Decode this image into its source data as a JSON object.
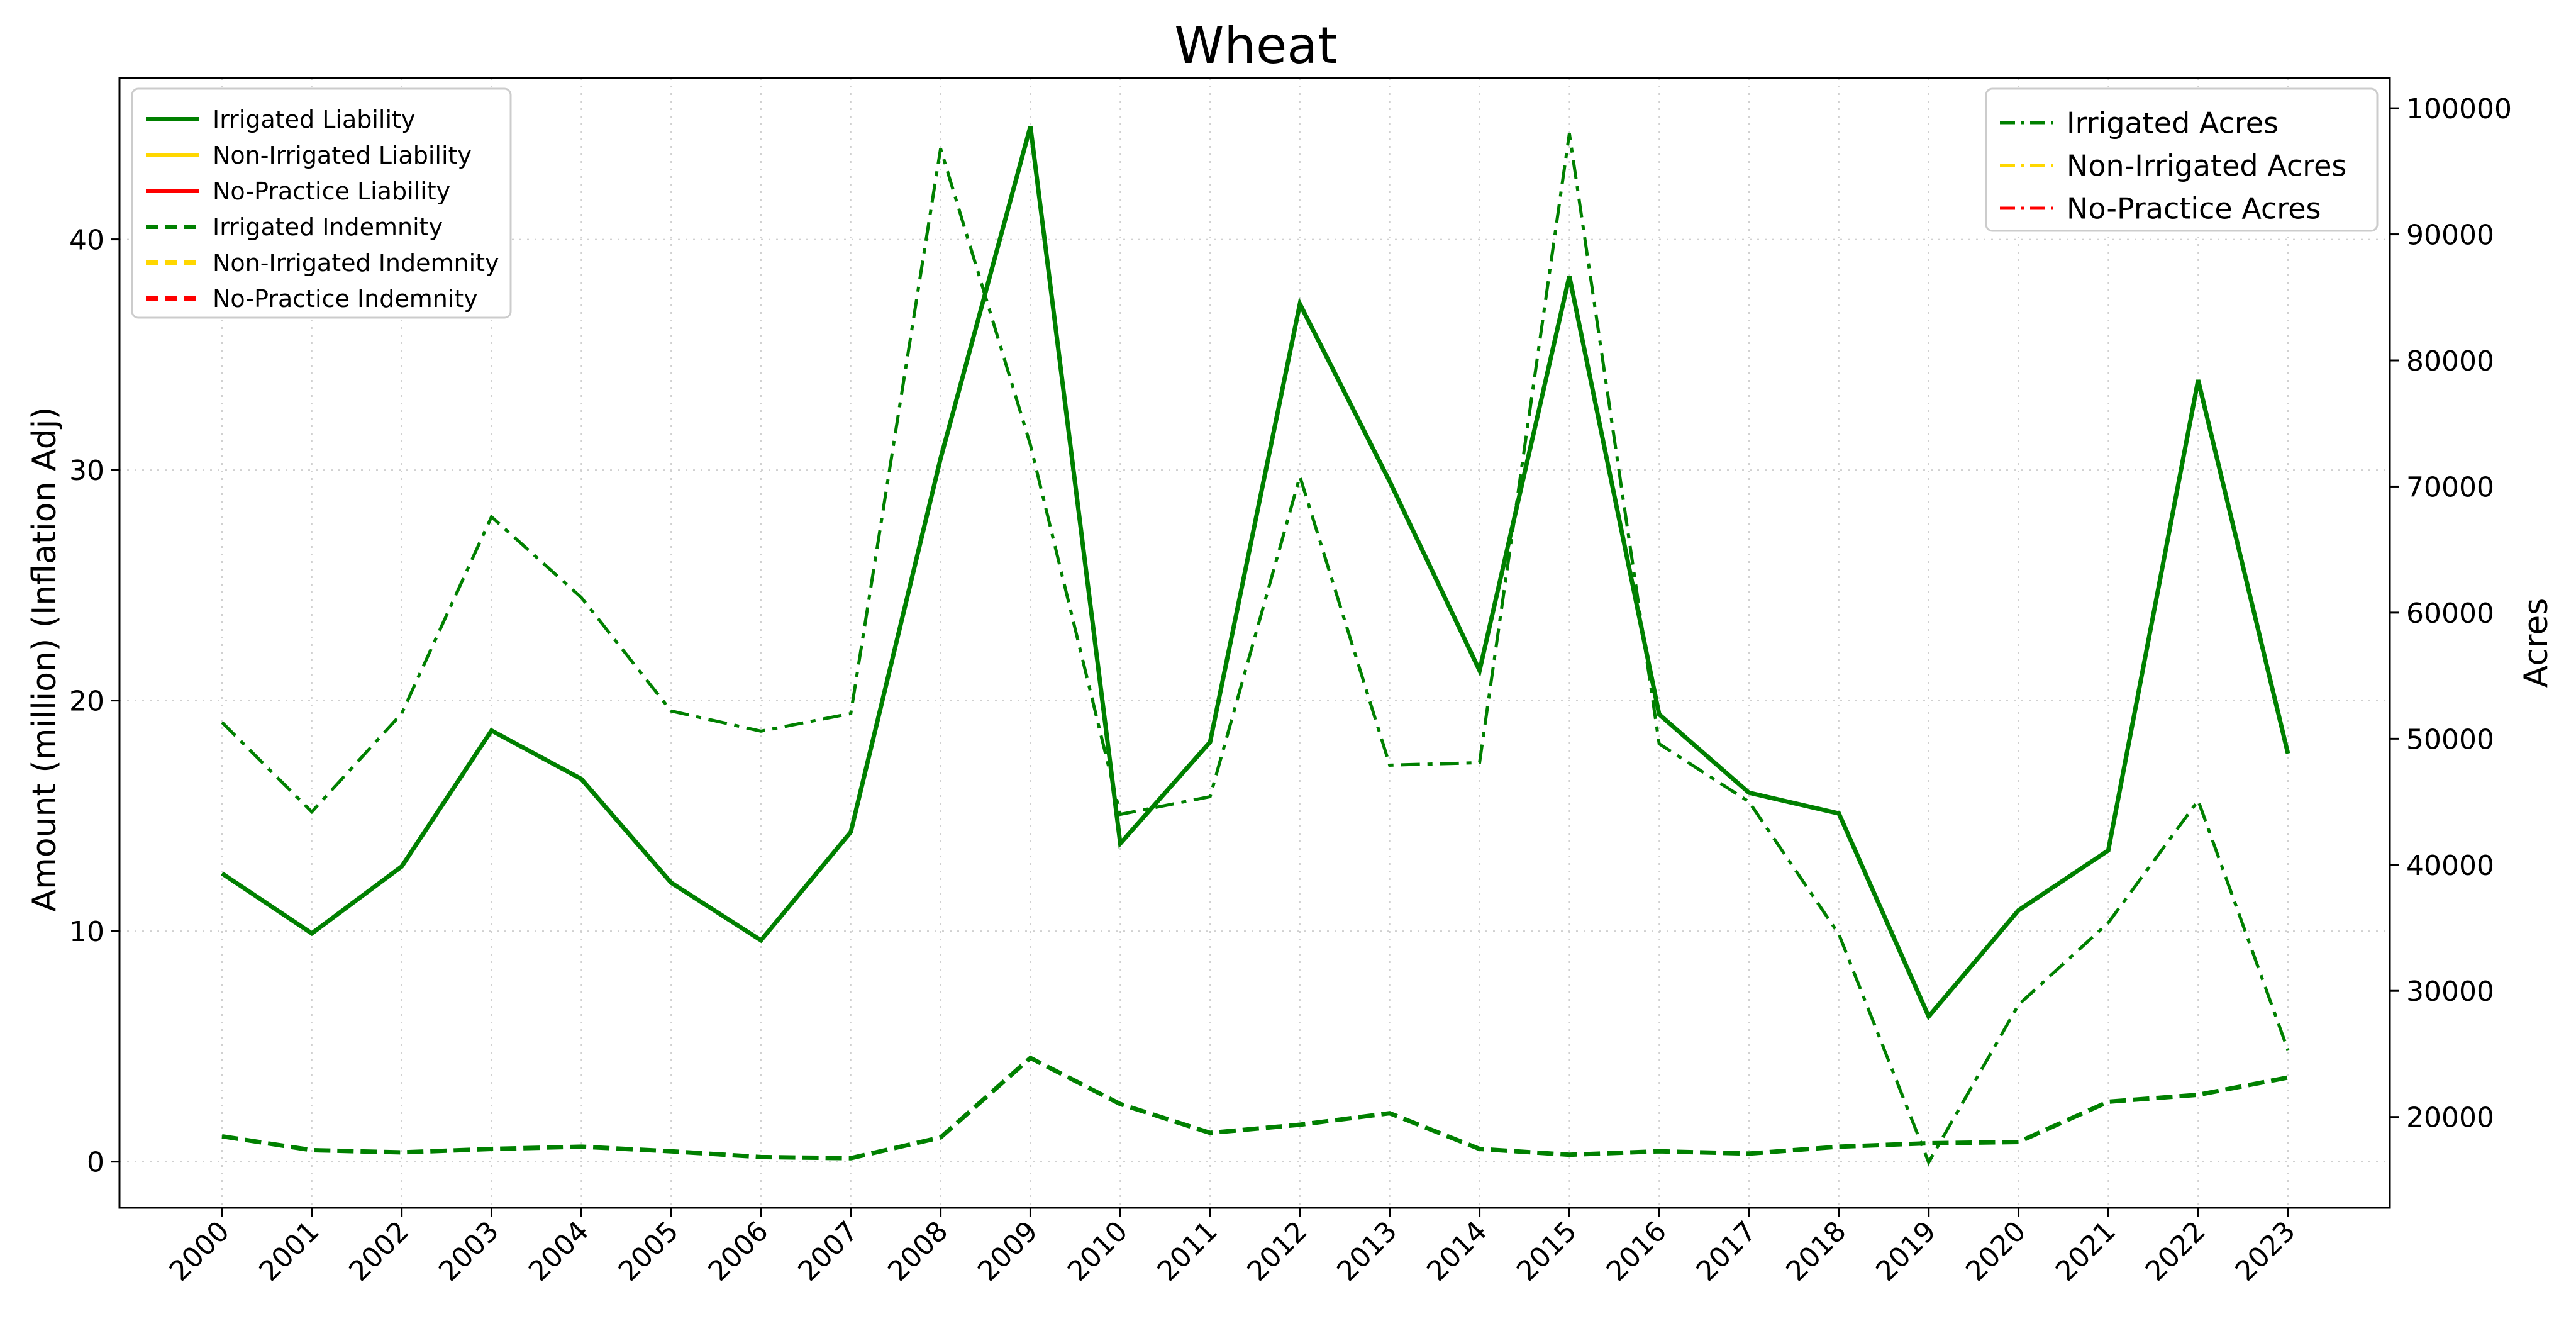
{
  "chart_data": {
    "type": "line",
    "title": "Wheat",
    "xlabel": "",
    "ylabel": "Amount (million) (Inflation Adj)",
    "ylabel_right": "Acres",
    "x": [
      "2000",
      "2001",
      "2002",
      "2003",
      "2004",
      "2005",
      "2006",
      "2007",
      "2008",
      "2009",
      "2010",
      "2011",
      "2012",
      "2013",
      "2014",
      "2015",
      "2016",
      "2017",
      "2018",
      "2019",
      "2020",
      "2021",
      "2022",
      "2023"
    ],
    "ylim": [
      -2,
      47
    ],
    "ylim_right": [
      12800,
      102400
    ],
    "yticks": [
      0,
      10,
      20,
      30,
      40
    ],
    "yticks_right": [
      20000,
      30000,
      40000,
      50000,
      60000,
      70000,
      80000,
      90000,
      100000
    ],
    "grid": true,
    "colors": {
      "irrigated": "#008000",
      "non_irrigated": "#FFD700",
      "no_practice": "#FF0000"
    },
    "legend_left": {
      "placement": "top-left",
      "entries": [
        {
          "label": "Irrigated Liability",
          "color": "#008000",
          "style": "solid"
        },
        {
          "label": "Non-Irrigated Liability",
          "color": "#FFD700",
          "style": "solid"
        },
        {
          "label": "No-Practice Liability",
          "color": "#FF0000",
          "style": "solid"
        },
        {
          "label": "Irrigated Indemnity",
          "color": "#008000",
          "style": "dashed"
        },
        {
          "label": "Non-Irrigated Indemnity",
          "color": "#FFD700",
          "style": "dashed"
        },
        {
          "label": "No-Practice Indemnity",
          "color": "#FF0000",
          "style": "dashed"
        }
      ]
    },
    "legend_right": {
      "placement": "top-right",
      "entries": [
        {
          "label": "Irrigated Acres",
          "color": "#008000",
          "style": "dashdot"
        },
        {
          "label": "Non-Irrigated Acres",
          "color": "#FFD700",
          "style": "dashdot"
        },
        {
          "label": "No-Practice Acres",
          "color": "#FF0000",
          "style": "dashdot"
        }
      ]
    },
    "series": [
      {
        "name": "Irrigated Liability",
        "axis": "left",
        "color": "#008000",
        "style": "solid",
        "values": [
          12.5,
          9.9,
          12.8,
          18.7,
          16.6,
          12.1,
          9.6,
          14.3,
          30.5,
          44.9,
          13.8,
          18.2,
          37.2,
          29.5,
          21.3,
          38.4,
          19.4,
          16.0,
          15.1,
          6.3,
          10.9,
          13.5,
          33.9,
          17.7
        ]
      },
      {
        "name": "Irrigated Indemnity",
        "axis": "left",
        "color": "#008000",
        "style": "dashed",
        "values": [
          1.1,
          0.5,
          0.4,
          0.55,
          0.65,
          0.45,
          0.2,
          0.15,
          1.05,
          4.5,
          2.5,
          1.25,
          1.6,
          2.1,
          0.55,
          0.3,
          0.45,
          0.35,
          0.65,
          0.8,
          0.85,
          2.6,
          2.9,
          3.65
        ]
      },
      {
        "name": "Irrigated Acres",
        "axis": "right",
        "color": "#008000",
        "style": "dashdot",
        "values": [
          51300,
          44200,
          52000,
          67600,
          61200,
          52200,
          50600,
          52000,
          96800,
          73300,
          44000,
          45400,
          70800,
          47900,
          48100,
          98000,
          49600,
          45000,
          34500,
          16400,
          28900,
          35400,
          45100,
          25300
        ]
      }
    ]
  }
}
